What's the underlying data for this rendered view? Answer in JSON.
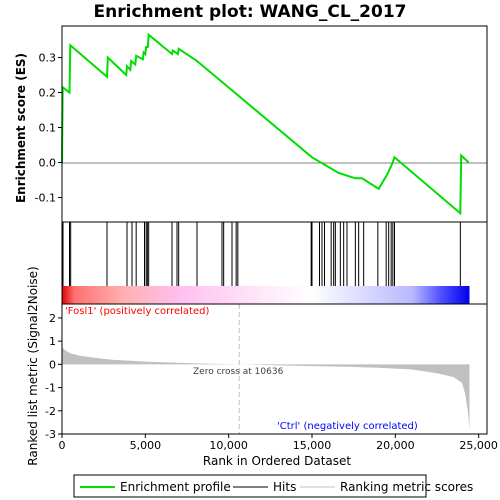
{
  "title": "Enrichment plot: WANG_CL_2017",
  "colors": {
    "enrichment_line": "#00dd00",
    "hits": "#000000",
    "ranking": "#c0c0c0",
    "positive_label": "#ff0000",
    "negative_label": "#0000ff"
  },
  "chart_data": [
    {
      "type": "line",
      "name": "enrichment-profile",
      "ylabel": "Enrichment score (ES)",
      "xlim": [
        0,
        25500
      ],
      "ylim": [
        -0.17,
        0.39
      ],
      "y_ticks": [
        -0.1,
        0.0,
        0.1,
        0.2,
        0.3
      ],
      "y_tick_labels": [
        "-0.1",
        "0.0",
        "0.1",
        "0.2",
        "0.3"
      ],
      "grid": false,
      "series": [
        {
          "name": "Enrichment profile",
          "x": [
            0,
            40,
            450,
            500,
            2700,
            2750,
            3850,
            3900,
            4100,
            4150,
            4400,
            4450,
            4850,
            4900,
            5000,
            5050,
            5150,
            5200,
            6600,
            6650,
            6950,
            7000,
            8100,
            15000,
            16600,
            17600,
            18000,
            19000,
            19500,
            19800,
            19950,
            23900,
            23950,
            24400
          ],
          "y": [
            0.0,
            0.215,
            0.2,
            0.335,
            0.245,
            0.3,
            0.25,
            0.275,
            0.265,
            0.29,
            0.28,
            0.305,
            0.295,
            0.315,
            0.31,
            0.33,
            0.33,
            0.365,
            0.31,
            0.32,
            0.31,
            0.325,
            0.29,
            0.015,
            -0.03,
            -0.045,
            -0.045,
            -0.075,
            -0.035,
            -0.005,
            0.015,
            -0.145,
            0.02,
            0.0
          ]
        }
      ]
    },
    {
      "type": "scatter",
      "name": "hits",
      "x": [
        60,
        450,
        520,
        2700,
        3900,
        4200,
        4450,
        4950,
        5050,
        5120,
        5200,
        6600,
        6900,
        7000,
        8100,
        9600,
        9700,
        10200,
        10450,
        10550,
        14950,
        15000,
        15450,
        15600,
        15750,
        16150,
        16300,
        16400,
        16700,
        16900,
        17100,
        17600,
        17800,
        18100,
        18950,
        19450,
        19600,
        19750,
        19850,
        19950,
        23900
      ],
      "heatmap_colors": [
        "#dd0000",
        "#ff7070",
        "#ffb0b0",
        "#ffc0f0",
        "#ffffff",
        "#b8b8ff",
        "#5050ff",
        "#0000ee"
      ]
    },
    {
      "type": "area",
      "name": "ranked-list-metric",
      "ylabel": "Ranked list metric (Signal2Noise)",
      "xlabel": "Rank in Ordered Dataset",
      "xlim": [
        0,
        25500
      ],
      "ylim": [
        -3,
        2.6
      ],
      "x": [
        0,
        50,
        200,
        500,
        1000,
        2000,
        3000,
        5000,
        8000,
        10636,
        14000,
        17000,
        19000,
        21000,
        22500,
        23500,
        24000,
        24200,
        24350,
        24450
      ],
      "y": [
        0.9,
        0.7,
        0.6,
        0.48,
        0.38,
        0.28,
        0.2,
        0.12,
        0.04,
        0.0,
        -0.06,
        -0.1,
        -0.15,
        -0.22,
        -0.38,
        -0.55,
        -0.8,
        -1.3,
        -2.0,
        -2.8
      ],
      "x_ticks": [
        0,
        5000,
        10000,
        15000,
        20000,
        25000
      ],
      "x_tick_labels": [
        "0",
        "5,000",
        "10,000",
        "15,000",
        "20,000",
        "25,000"
      ],
      "y_ticks": [
        -3,
        -2,
        -1,
        0,
        1,
        2
      ],
      "y_tick_labels": [
        "-3",
        "-2",
        "-1",
        "0",
        "1",
        "2"
      ],
      "zero_cross_value": 10636,
      "annotations": {
        "positive": "'Fosl1' (positively correlated)",
        "zero_cross": "Zero cross at 10636",
        "negative": "'Ctrl' (negatively correlated)"
      }
    }
  ],
  "legend": {
    "placement": "bottom",
    "items": [
      "Enrichment profile",
      "Hits",
      "Ranking metric scores"
    ]
  }
}
